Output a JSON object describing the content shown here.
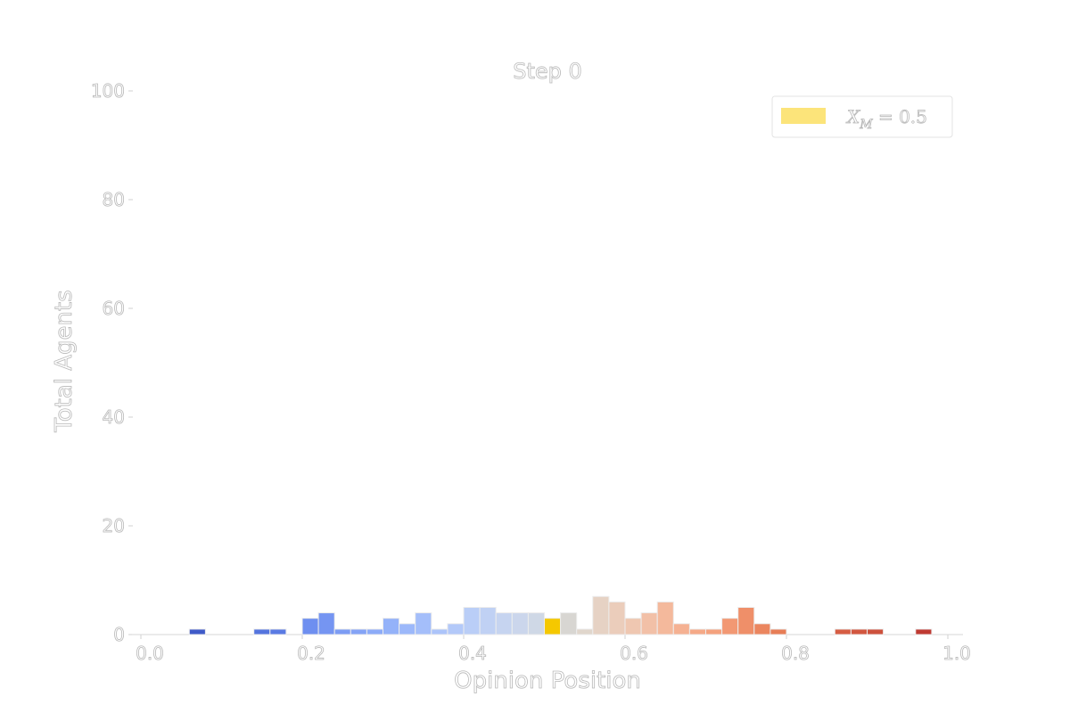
{
  "chart_data": {
    "type": "bar",
    "title": "Step 0",
    "xlabel": "Opinion Position",
    "ylabel": "Total Agents",
    "xlim": [
      0.0,
      1.0
    ],
    "ylim": [
      0,
      100
    ],
    "x_ticks": [
      0.0,
      0.2,
      0.4,
      0.6,
      0.8,
      1.0
    ],
    "x_tick_labels": [
      "0.0",
      "0.2",
      "0.4",
      "0.6",
      "0.8",
      "1.0"
    ],
    "y_ticks": [
      0,
      20,
      40,
      60,
      80,
      100
    ],
    "y_tick_labels": [
      "0",
      "20",
      "40",
      "60",
      "80",
      "100"
    ],
    "grid": false,
    "bin_width": 0.02,
    "bins": [
      {
        "x0": 0.06,
        "count": 1,
        "color": "#3f5bc8"
      },
      {
        "x0": 0.14,
        "count": 1,
        "color": "#5474de"
      },
      {
        "x0": 0.16,
        "count": 1,
        "color": "#5a7ae3"
      },
      {
        "x0": 0.2,
        "count": 3,
        "color": "#6e8ff0"
      },
      {
        "x0": 0.22,
        "count": 4,
        "color": "#7595f2"
      },
      {
        "x0": 0.24,
        "count": 1,
        "color": "#7c9cf4"
      },
      {
        "x0": 0.26,
        "count": 1,
        "color": "#84a3f6"
      },
      {
        "x0": 0.28,
        "count": 1,
        "color": "#8cabf8"
      },
      {
        "x0": 0.3,
        "count": 3,
        "color": "#94b2f9"
      },
      {
        "x0": 0.32,
        "count": 2,
        "color": "#9cb8fa"
      },
      {
        "x0": 0.34,
        "count": 4,
        "color": "#a4befa"
      },
      {
        "x0": 0.36,
        "count": 1,
        "color": "#acc4fa"
      },
      {
        "x0": 0.38,
        "count": 2,
        "color": "#b3c9f9"
      },
      {
        "x0": 0.4,
        "count": 5,
        "color": "#bacef7"
      },
      {
        "x0": 0.42,
        "count": 5,
        "color": "#c0d1f4"
      },
      {
        "x0": 0.44,
        "count": 4,
        "color": "#c6d4f0"
      },
      {
        "x0": 0.46,
        "count": 4,
        "color": "#cbd6ec"
      },
      {
        "x0": 0.48,
        "count": 4,
        "color": "#cfd8e6"
      },
      {
        "x0": 0.5,
        "count": 3,
        "color": "#f5c800"
      },
      {
        "x0": 0.52,
        "count": 4,
        "color": "#d8d6d2"
      },
      {
        "x0": 0.54,
        "count": 1,
        "color": "#e0d6cc"
      },
      {
        "x0": 0.56,
        "count": 7,
        "color": "#e6d2c4"
      },
      {
        "x0": 0.58,
        "count": 6,
        "color": "#ebcdbb"
      },
      {
        "x0": 0.6,
        "count": 3,
        "color": "#efc7b1"
      },
      {
        "x0": 0.62,
        "count": 4,
        "color": "#f2c0a7"
      },
      {
        "x0": 0.64,
        "count": 6,
        "color": "#f4b99c"
      },
      {
        "x0": 0.66,
        "count": 2,
        "color": "#f5b192"
      },
      {
        "x0": 0.68,
        "count": 1,
        "color": "#f5a987"
      },
      {
        "x0": 0.7,
        "count": 1,
        "color": "#f4a17d"
      },
      {
        "x0": 0.72,
        "count": 3,
        "color": "#f29873"
      },
      {
        "x0": 0.74,
        "count": 5,
        "color": "#ef8f69"
      },
      {
        "x0": 0.76,
        "count": 2,
        "color": "#eb865f"
      },
      {
        "x0": 0.78,
        "count": 1,
        "color": "#e77d56"
      },
      {
        "x0": 0.86,
        "count": 1,
        "color": "#d65d43"
      },
      {
        "x0": 0.88,
        "count": 1,
        "color": "#d2573f"
      },
      {
        "x0": 0.9,
        "count": 1,
        "color": "#cd513c"
      },
      {
        "x0": 0.96,
        "count": 1,
        "color": "#bf3a32"
      }
    ],
    "legend": {
      "position": "top-right",
      "entries": [
        {
          "label": "X_M = 0.5",
          "color": "#fce47a"
        }
      ]
    }
  }
}
